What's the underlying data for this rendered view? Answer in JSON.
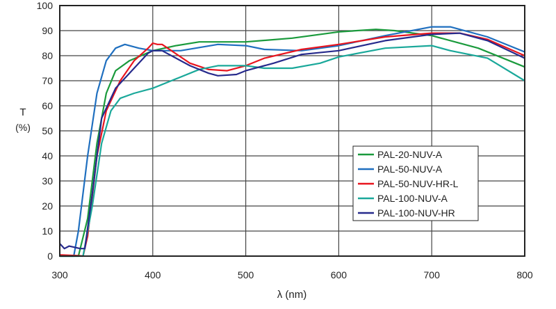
{
  "chart_data": {
    "type": "line",
    "title": "",
    "xlabel": "λ (nm)",
    "ylabel": "T",
    "ylabel_unit": "(%)",
    "xlim": [
      300,
      800
    ],
    "ylim": [
      0,
      100
    ],
    "xticks": [
      300,
      400,
      500,
      600,
      700,
      800
    ],
    "yticks": [
      0,
      10,
      20,
      30,
      40,
      50,
      60,
      70,
      80,
      90,
      100
    ],
    "grid": true,
    "legend_position": "center-right",
    "series": [
      {
        "name": "PAL-20-NUV-A",
        "color": "#1a9a3c",
        "points": [
          [
            300,
            0
          ],
          [
            320,
            0
          ],
          [
            330,
            15
          ],
          [
            340,
            45
          ],
          [
            350,
            65
          ],
          [
            360,
            74
          ],
          [
            375,
            78
          ],
          [
            400,
            82
          ],
          [
            425,
            84
          ],
          [
            450,
            85.5
          ],
          [
            500,
            85.5
          ],
          [
            550,
            87
          ],
          [
            600,
            89.5
          ],
          [
            640,
            90.5
          ],
          [
            660,
            90
          ],
          [
            700,
            88
          ],
          [
            750,
            83
          ],
          [
            800,
            75.5
          ]
        ]
      },
      {
        "name": "PAL-50-NUV-A",
        "color": "#1f6fbf",
        "points": [
          [
            300,
            0
          ],
          [
            315,
            0
          ],
          [
            320,
            10
          ],
          [
            330,
            40
          ],
          [
            340,
            65
          ],
          [
            350,
            78
          ],
          [
            360,
            83
          ],
          [
            370,
            84.5
          ],
          [
            385,
            83
          ],
          [
            400,
            82
          ],
          [
            430,
            82
          ],
          [
            470,
            84.5
          ],
          [
            500,
            84
          ],
          [
            520,
            82.5
          ],
          [
            560,
            82
          ],
          [
            600,
            84
          ],
          [
            650,
            88
          ],
          [
            700,
            91.5
          ],
          [
            720,
            91.5
          ],
          [
            760,
            87.5
          ],
          [
            800,
            81.5
          ]
        ]
      },
      {
        "name": "PAL-50-NUV-HR-L",
        "color": "#e8141e",
        "points": [
          [
            300,
            0.5
          ],
          [
            320,
            0.2
          ],
          [
            325,
            0
          ],
          [
            330,
            8
          ],
          [
            340,
            40
          ],
          [
            350,
            58
          ],
          [
            365,
            70
          ],
          [
            380,
            78
          ],
          [
            395,
            83
          ],
          [
            400,
            85
          ],
          [
            405,
            84.5
          ],
          [
            410,
            84.5
          ],
          [
            420,
            82
          ],
          [
            440,
            77
          ],
          [
            460,
            74.5
          ],
          [
            480,
            74
          ],
          [
            500,
            76
          ],
          [
            520,
            79
          ],
          [
            560,
            82.5
          ],
          [
            600,
            84.5
          ],
          [
            650,
            87.5
          ],
          [
            700,
            89
          ],
          [
            730,
            89
          ],
          [
            760,
            86.5
          ],
          [
            800,
            80
          ]
        ]
      },
      {
        "name": "PAL-100-NUV-A",
        "color": "#1aa89a",
        "points": [
          [
            300,
            0
          ],
          [
            325,
            0
          ],
          [
            335,
            20
          ],
          [
            345,
            45
          ],
          [
            355,
            58
          ],
          [
            365,
            63
          ],
          [
            380,
            65
          ],
          [
            400,
            67
          ],
          [
            420,
            70
          ],
          [
            450,
            74.5
          ],
          [
            470,
            76
          ],
          [
            500,
            76
          ],
          [
            520,
            75
          ],
          [
            550,
            75
          ],
          [
            580,
            77
          ],
          [
            600,
            79.5
          ],
          [
            650,
            83
          ],
          [
            700,
            84
          ],
          [
            720,
            82
          ],
          [
            760,
            79
          ],
          [
            800,
            70
          ]
        ]
      },
      {
        "name": "PAL-100-NUV-HR",
        "color": "#262a8c",
        "points": [
          [
            300,
            5
          ],
          [
            305,
            3
          ],
          [
            310,
            4
          ],
          [
            322,
            3
          ],
          [
            327,
            3
          ],
          [
            335,
            25
          ],
          [
            345,
            55
          ],
          [
            360,
            67
          ],
          [
            380,
            75
          ],
          [
            395,
            81
          ],
          [
            400,
            82
          ],
          [
            410,
            82
          ],
          [
            440,
            76
          ],
          [
            460,
            73
          ],
          [
            470,
            72
          ],
          [
            490,
            72.5
          ],
          [
            500,
            74
          ],
          [
            530,
            77
          ],
          [
            560,
            80.5
          ],
          [
            600,
            82
          ],
          [
            650,
            86
          ],
          [
            700,
            88.5
          ],
          [
            730,
            89
          ],
          [
            760,
            86
          ],
          [
            800,
            79
          ]
        ]
      }
    ]
  }
}
